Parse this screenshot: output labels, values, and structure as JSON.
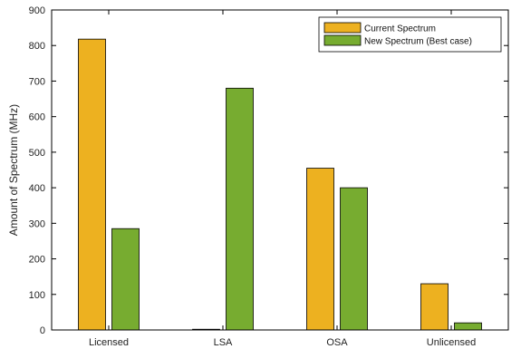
{
  "chart_data": {
    "type": "bar",
    "categories": [
      "Licensed",
      "LSA",
      "OSA",
      "Unlicensed"
    ],
    "series": [
      {
        "name": "Current Spectrum",
        "values": [
          818,
          2,
          455,
          130
        ],
        "color": "#EDB120"
      },
      {
        "name": "New Spectrum (Best case)",
        "values": [
          285,
          680,
          400,
          20
        ],
        "color": "#77AC30"
      }
    ],
    "title": "",
    "xlabel": "",
    "ylabel": "Amount of Spectrum (MHz)",
    "ylim": [
      0,
      900
    ],
    "yticks": [
      0,
      100,
      200,
      300,
      400,
      500,
      600,
      700,
      800,
      900
    ],
    "grid": false,
    "legend_position": "top-right"
  }
}
